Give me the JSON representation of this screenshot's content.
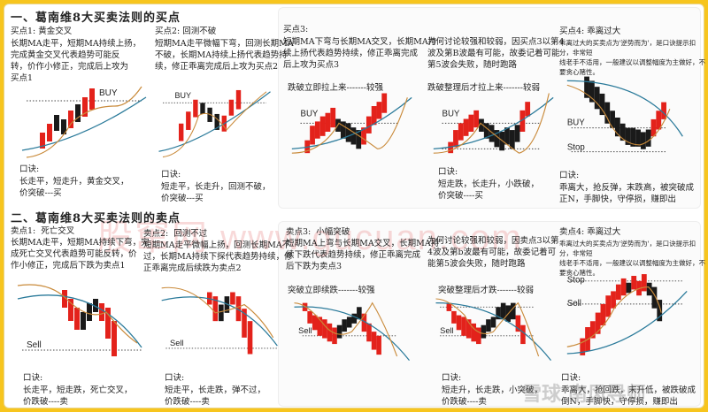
{
  "buy_section": {
    "title": "一、葛南维8大买卖法则的买点",
    "items": [
      {
        "title": "买点1: 黄金交叉",
        "desc": "长期MA走平，短期MA持续上扬，\n完成黄金交叉代表趋势可能反\n转，价作小修正，完成后上攻为\n买点1",
        "chart_label": "",
        "mark": "BUY",
        "rhyme_title": "口诀:",
        "rhyme": "长走平，短走升，黄金交叉，\n价突破---买"
      },
      {
        "title": "买点2: 回测不破",
        "desc": "短期MA走平微幅下弯，回测长期MA\n不破，长期MA持续上扬代表趋势持\n续，修正乖离完成后上攻为买点2",
        "chart_label": "",
        "mark": "BUY",
        "rhyme_title": "口诀:",
        "rhyme": "短走平，长走升，回测不破，\n价突破---买"
      },
      {
        "title": "买点3:",
        "desc": "短期MA下弯与长期MA交叉，长期MA持\n续上扬代表趋势持续，修正乖离完成\n后上攻为买点3",
        "chart_label": "跌破立即拉上来-------较强",
        "mark": "BUY",
        "rhyme_title": "",
        "rhyme": ""
      },
      {
        "title": "",
        "desc": "为何讨论较强和较弱，因买点3以第4\n波及第B波最有可能，故委记着可能\n第5波会失败，随时跑路",
        "chart_label": "跌破整理后才拉上来-------较弱",
        "mark": "BUY",
        "rhyme_title": "口诀:",
        "rhyme": "短走跌，长走升，小跌破，\n价突破----买"
      },
      {
        "title": "买点4: 乖离过大",
        "desc": "乖离过大的买卖点为'逆势而为'，是口诀提示扣分，非常短\n线老手不适用，一般建议以调整幅度为主做好，不\n要贪心赌性。",
        "chart_label": "",
        "mark": "BUY",
        "stop": "Stop",
        "rhyme_title": "口诀:",
        "rhyme": "乖离大，抢反弹，末跌高，被突破成\n正N，手脚快，守停损，赚即出"
      }
    ]
  },
  "sell_section": {
    "title": "二、葛南维8大买卖法则的卖点",
    "items": [
      {
        "title": "卖点1:  死亡交叉",
        "desc": "长期MA走平，短期MA持续下弯，完\n成死亡交叉代表趋势可能反转，价\n作小修正，完成后下跌为卖点1",
        "chart_label": "",
        "mark": "Sell",
        "rhyme_title": "口诀:",
        "rhyme": "长走平，短走跌，死亡交叉，\n价跌破----卖"
      },
      {
        "title": "卖点2:  回测不过",
        "desc": "短期MA走平微幅上扬，回测长期MA不\n过，长期MA持续下探代表趋势持续，修\n正乖离完成后续跌为卖点2",
        "chart_label": "",
        "mark": "Sell",
        "rhyme_title": "口诀:",
        "rhyme": "短走平，长走跌，弹不过，\n价跌破----卖"
      },
      {
        "title": "卖点3:  小幅突破",
        "desc": "短期MA上弯与长期MA交叉，长期MA持\n续下跌代表趋势持续，修正乖离完成\n后下跌为卖点3",
        "chart_label": "突破立即续跌-------较强",
        "mark": "Sell",
        "rhyme_title": "",
        "rhyme": ""
      },
      {
        "title": "",
        "desc": "为何讨论较强和较弱，因卖点3以第\n4波及第b波最有可能，故委记着可\n能第5波会失败，随时跑路",
        "chart_label": "突破整理后才跌-------较弱",
        "mark": "Sell",
        "rhyme_title": "口诀:",
        "rhyme": "短走升，长走跌，小突破，\n价跌破----卖"
      },
      {
        "title": "卖点4: 乖离过大",
        "desc": "乖离过大的买卖点为'逆势而为'，是口诀提示扣分，非常短\n线老手不适用，一般建议以调整幅度为主做好，不\n要贪心赌性。",
        "chart_label": "",
        "mark": "Sell",
        "stop": "Stop",
        "rhyme_title": "口诀:",
        "rhyme": "乖离大，抢回跌，末升低，被跌破成\n倒N，手脚快，守停损，赚即出"
      }
    ]
  },
  "watermark": "股窜网  www.gucuan.com",
  "logo": "雪球 南风导师",
  "colors": {
    "frame": "#f7c51e",
    "up": "#e3221b",
    "down": "#1a1a1a",
    "long_ma": "#2a7a9a",
    "short_ma": "#c98a3a"
  }
}
